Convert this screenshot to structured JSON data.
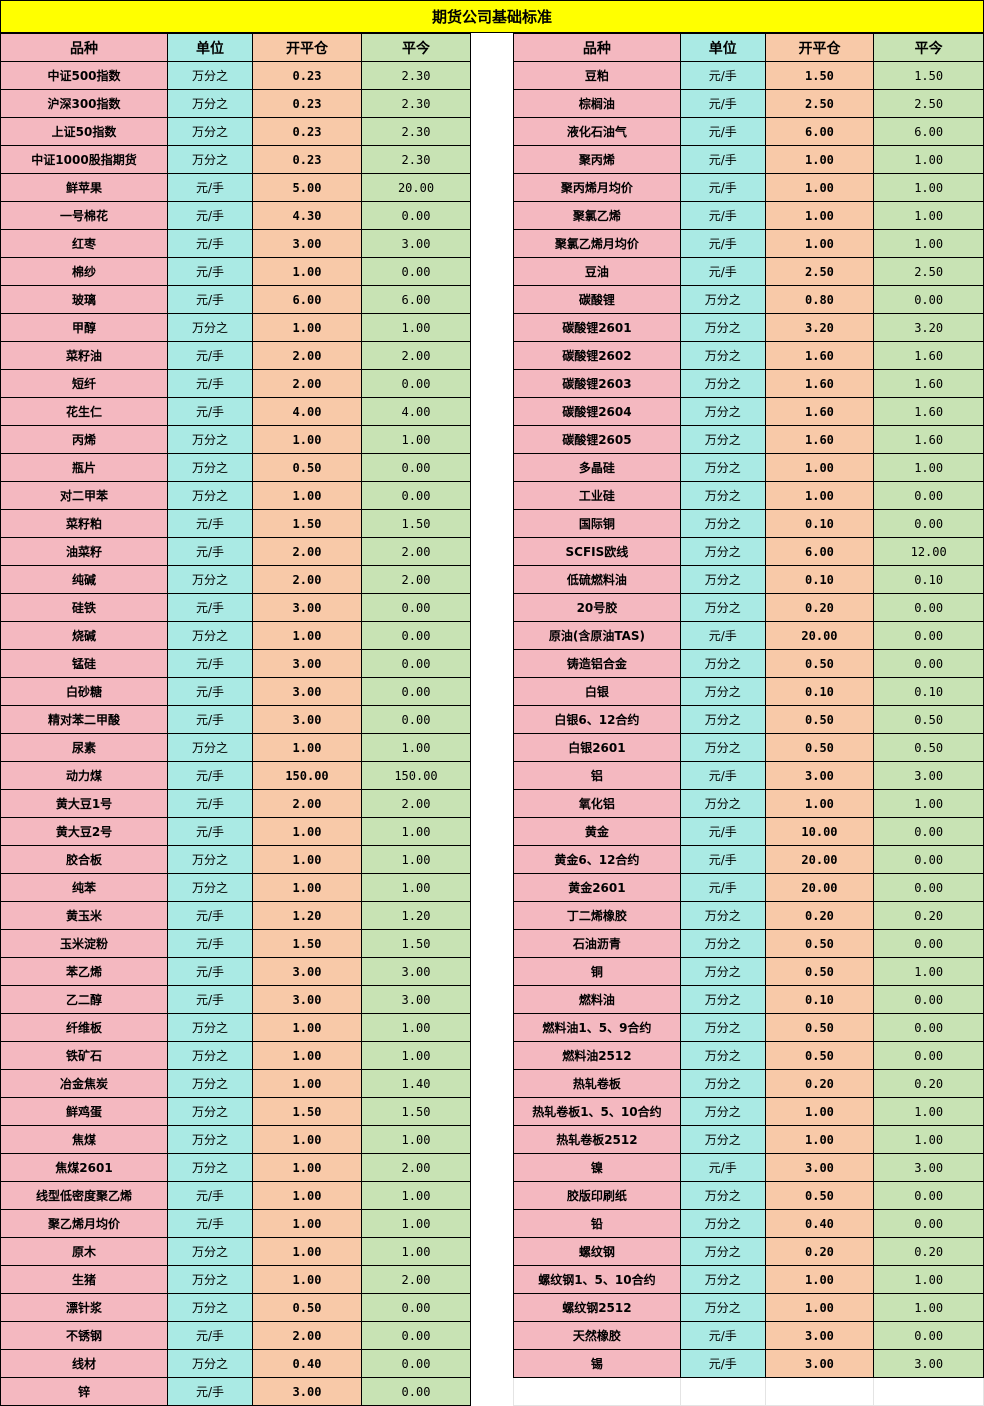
{
  "title": "期货公司基础标准",
  "headers": [
    "品种",
    "单位",
    "开平仓",
    "平今"
  ],
  "left_rows": [
    [
      "中证500指数",
      "万分之",
      "0.23",
      "2.30"
    ],
    [
      "沪深300指数",
      "万分之",
      "0.23",
      "2.30"
    ],
    [
      "上证50指数",
      "万分之",
      "0.23",
      "2.30"
    ],
    [
      "中证1000股指期货",
      "万分之",
      "0.23",
      "2.30"
    ],
    [
      "鲜苹果",
      "元/手",
      "5.00",
      "20.00"
    ],
    [
      "一号棉花",
      "元/手",
      "4.30",
      "0.00"
    ],
    [
      "红枣",
      "元/手",
      "3.00",
      "3.00"
    ],
    [
      "棉纱",
      "元/手",
      "1.00",
      "0.00"
    ],
    [
      "玻璃",
      "元/手",
      "6.00",
      "6.00"
    ],
    [
      "甲醇",
      "万分之",
      "1.00",
      "1.00"
    ],
    [
      "菜籽油",
      "元/手",
      "2.00",
      "2.00"
    ],
    [
      "短纤",
      "元/手",
      "2.00",
      "0.00"
    ],
    [
      "花生仁",
      "元/手",
      "4.00",
      "4.00"
    ],
    [
      "丙烯",
      "万分之",
      "1.00",
      "1.00"
    ],
    [
      "瓶片",
      "万分之",
      "0.50",
      "0.00"
    ],
    [
      "对二甲苯",
      "万分之",
      "1.00",
      "0.00"
    ],
    [
      "菜籽粕",
      "元/手",
      "1.50",
      "1.50"
    ],
    [
      "油菜籽",
      "元/手",
      "2.00",
      "2.00"
    ],
    [
      "纯碱",
      "万分之",
      "2.00",
      "2.00"
    ],
    [
      "硅铁",
      "元/手",
      "3.00",
      "0.00"
    ],
    [
      "烧碱",
      "万分之",
      "1.00",
      "0.00"
    ],
    [
      "锰硅",
      "元/手",
      "3.00",
      "0.00"
    ],
    [
      "白砂糖",
      "元/手",
      "3.00",
      "0.00"
    ],
    [
      "精对苯二甲酸",
      "元/手",
      "3.00",
      "0.00"
    ],
    [
      "尿素",
      "万分之",
      "1.00",
      "1.00"
    ],
    [
      "动力煤",
      "元/手",
      "150.00",
      "150.00"
    ],
    [
      "黄大豆1号",
      "元/手",
      "2.00",
      "2.00"
    ],
    [
      "黄大豆2号",
      "元/手",
      "1.00",
      "1.00"
    ],
    [
      "胶合板",
      "万分之",
      "1.00",
      "1.00"
    ],
    [
      "纯苯",
      "万分之",
      "1.00",
      "1.00"
    ],
    [
      "黄玉米",
      "元/手",
      "1.20",
      "1.20"
    ],
    [
      "玉米淀粉",
      "元/手",
      "1.50",
      "1.50"
    ],
    [
      "苯乙烯",
      "元/手",
      "3.00",
      "3.00"
    ],
    [
      "乙二醇",
      "元/手",
      "3.00",
      "3.00"
    ],
    [
      "纤维板",
      "万分之",
      "1.00",
      "1.00"
    ],
    [
      "铁矿石",
      "万分之",
      "1.00",
      "1.00"
    ],
    [
      "冶金焦炭",
      "万分之",
      "1.00",
      "1.40"
    ],
    [
      "鲜鸡蛋",
      "万分之",
      "1.50",
      "1.50"
    ],
    [
      "焦煤",
      "万分之",
      "1.00",
      "1.00"
    ],
    [
      "焦煤2601",
      "万分之",
      "1.00",
      "2.00"
    ],
    [
      "线型低密度聚乙烯",
      "元/手",
      "1.00",
      "1.00"
    ],
    [
      "聚乙烯月均价",
      "元/手",
      "1.00",
      "1.00"
    ],
    [
      "原木",
      "万分之",
      "1.00",
      "1.00"
    ],
    [
      "生猪",
      "万分之",
      "1.00",
      "2.00"
    ],
    [
      "漂针浆",
      "万分之",
      "0.50",
      "0.00"
    ],
    [
      "不锈钢",
      "元/手",
      "2.00",
      "0.00"
    ],
    [
      "线材",
      "万分之",
      "0.40",
      "0.00"
    ],
    [
      "锌",
      "元/手",
      "3.00",
      "0.00"
    ]
  ],
  "right_rows": [
    [
      "豆粕",
      "元/手",
      "1.50",
      "1.50"
    ],
    [
      "棕榈油",
      "元/手",
      "2.50",
      "2.50"
    ],
    [
      "液化石油气",
      "元/手",
      "6.00",
      "6.00"
    ],
    [
      "聚丙烯",
      "元/手",
      "1.00",
      "1.00"
    ],
    [
      "聚丙烯月均价",
      "元/手",
      "1.00",
      "1.00"
    ],
    [
      "聚氯乙烯",
      "元/手",
      "1.00",
      "1.00"
    ],
    [
      "聚氯乙烯月均价",
      "元/手",
      "1.00",
      "1.00"
    ],
    [
      "豆油",
      "元/手",
      "2.50",
      "2.50"
    ],
    [
      "碳酸锂",
      "万分之",
      "0.80",
      "0.00"
    ],
    [
      "碳酸锂2601",
      "万分之",
      "3.20",
      "3.20"
    ],
    [
      "碳酸锂2602",
      "万分之",
      "1.60",
      "1.60"
    ],
    [
      "碳酸锂2603",
      "万分之",
      "1.60",
      "1.60"
    ],
    [
      "碳酸锂2604",
      "万分之",
      "1.60",
      "1.60"
    ],
    [
      "碳酸锂2605",
      "万分之",
      "1.60",
      "1.60"
    ],
    [
      "多晶硅",
      "万分之",
      "1.00",
      "1.00"
    ],
    [
      "工业硅",
      "万分之",
      "1.00",
      "0.00"
    ],
    [
      "国际铜",
      "万分之",
      "0.10",
      "0.00"
    ],
    [
      "SCFIS欧线",
      "万分之",
      "6.00",
      "12.00"
    ],
    [
      "低硫燃料油",
      "万分之",
      "0.10",
      "0.10"
    ],
    [
      "20号胶",
      "万分之",
      "0.20",
      "0.00"
    ],
    [
      "原油(含原油TAS)",
      "元/手",
      "20.00",
      "0.00"
    ],
    [
      "铸造铝合金",
      "万分之",
      "0.50",
      "0.00"
    ],
    [
      "白银",
      "万分之",
      "0.10",
      "0.10"
    ],
    [
      "白银6、12合约",
      "万分之",
      "0.50",
      "0.50"
    ],
    [
      "白银2601",
      "万分之",
      "0.50",
      "0.50"
    ],
    [
      "铝",
      "元/手",
      "3.00",
      "3.00"
    ],
    [
      "氧化铝",
      "万分之",
      "1.00",
      "1.00"
    ],
    [
      "黄金",
      "元/手",
      "10.00",
      "0.00"
    ],
    [
      "黄金6、12合约",
      "元/手",
      "20.00",
      "0.00"
    ],
    [
      "黄金2601",
      "元/手",
      "20.00",
      "0.00"
    ],
    [
      "丁二烯橡胶",
      "万分之",
      "0.20",
      "0.20"
    ],
    [
      "石油沥青",
      "万分之",
      "0.50",
      "0.00"
    ],
    [
      "铜",
      "万分之",
      "0.50",
      "1.00"
    ],
    [
      "燃料油",
      "万分之",
      "0.10",
      "0.00"
    ],
    [
      "燃料油1、5、9合约",
      "万分之",
      "0.50",
      "0.00"
    ],
    [
      "燃料油2512",
      "万分之",
      "0.50",
      "0.00"
    ],
    [
      "热轧卷板",
      "万分之",
      "0.20",
      "0.20"
    ],
    [
      "热轧卷板1、5、10合约",
      "万分之",
      "1.00",
      "1.00"
    ],
    [
      "热轧卷板2512",
      "万分之",
      "1.00",
      "1.00"
    ],
    [
      "镍",
      "元/手",
      "3.00",
      "3.00"
    ],
    [
      "胶版印刷纸",
      "万分之",
      "0.50",
      "0.00"
    ],
    [
      "铅",
      "万分之",
      "0.40",
      "0.00"
    ],
    [
      "螺纹钢",
      "万分之",
      "0.20",
      "0.20"
    ],
    [
      "螺纹钢1、5、10合约",
      "万分之",
      "1.00",
      "1.00"
    ],
    [
      "螺纹钢2512",
      "万分之",
      "1.00",
      "1.00"
    ],
    [
      "天然橡胶",
      "元/手",
      "3.00",
      "0.00"
    ],
    [
      "锡",
      "元/手",
      "3.00",
      "3.00"
    ]
  ]
}
